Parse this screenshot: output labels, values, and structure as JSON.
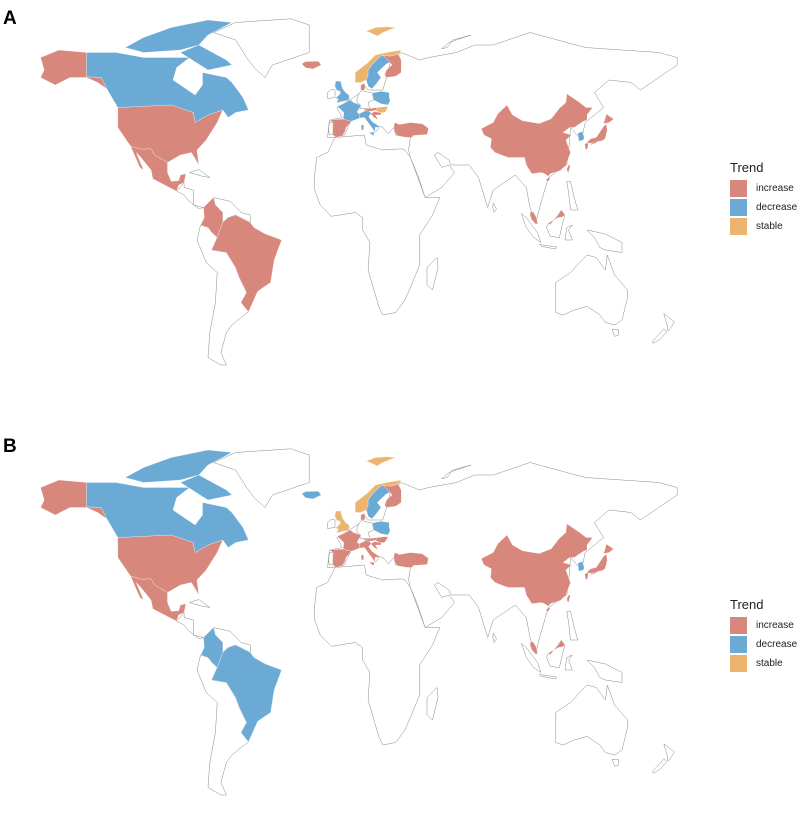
{
  "colors": {
    "increase": "#D7877B",
    "decrease": "#6AAAD5",
    "stable": "#EDB46F"
  },
  "legend": {
    "title": "Trend",
    "items": [
      {
        "key": "increase",
        "label": "increase"
      },
      {
        "key": "decrease",
        "label": "decrease"
      },
      {
        "key": "stable",
        "label": "stable"
      }
    ]
  },
  "panels": [
    {
      "label": "A",
      "trends": {
        "usa": "increase",
        "alaska": "increase",
        "canada": "decrease",
        "mexico": "increase",
        "colombia": "increase",
        "brazil": "increase",
        "iceland": "increase",
        "norway": "stable",
        "svalbard": "stable",
        "sweden": "decrease",
        "finland": "increase",
        "denmark": "increase",
        "uk": "decrease",
        "france": "decrease",
        "spain": "increase",
        "italy": "decrease",
        "poland": "decrease",
        "austria": "increase",
        "hungary": "stable",
        "croatia": "increase",
        "turkey": "increase",
        "china": "increase",
        "taiwan": "increase",
        "south_korea": "decrease",
        "japan": "increase",
        "malaysia": "increase"
      }
    },
    {
      "label": "B",
      "trends": {
        "usa": "increase",
        "alaska": "increase",
        "canada": "decrease",
        "mexico": "increase",
        "colombia": "decrease",
        "brazil": "decrease",
        "iceland": "decrease",
        "norway": "stable",
        "svalbard": "stable",
        "sweden": "decrease",
        "finland": "increase",
        "denmark": "increase",
        "uk": "stable",
        "france": "increase",
        "spain": "increase",
        "italy": "increase",
        "poland": "decrease",
        "austria": "increase",
        "hungary": "increase",
        "croatia": "increase",
        "turkey": "increase",
        "china": "increase",
        "taiwan": "increase",
        "south_korea": "decrease",
        "japan": "increase",
        "malaysia": "increase"
      }
    }
  ]
}
